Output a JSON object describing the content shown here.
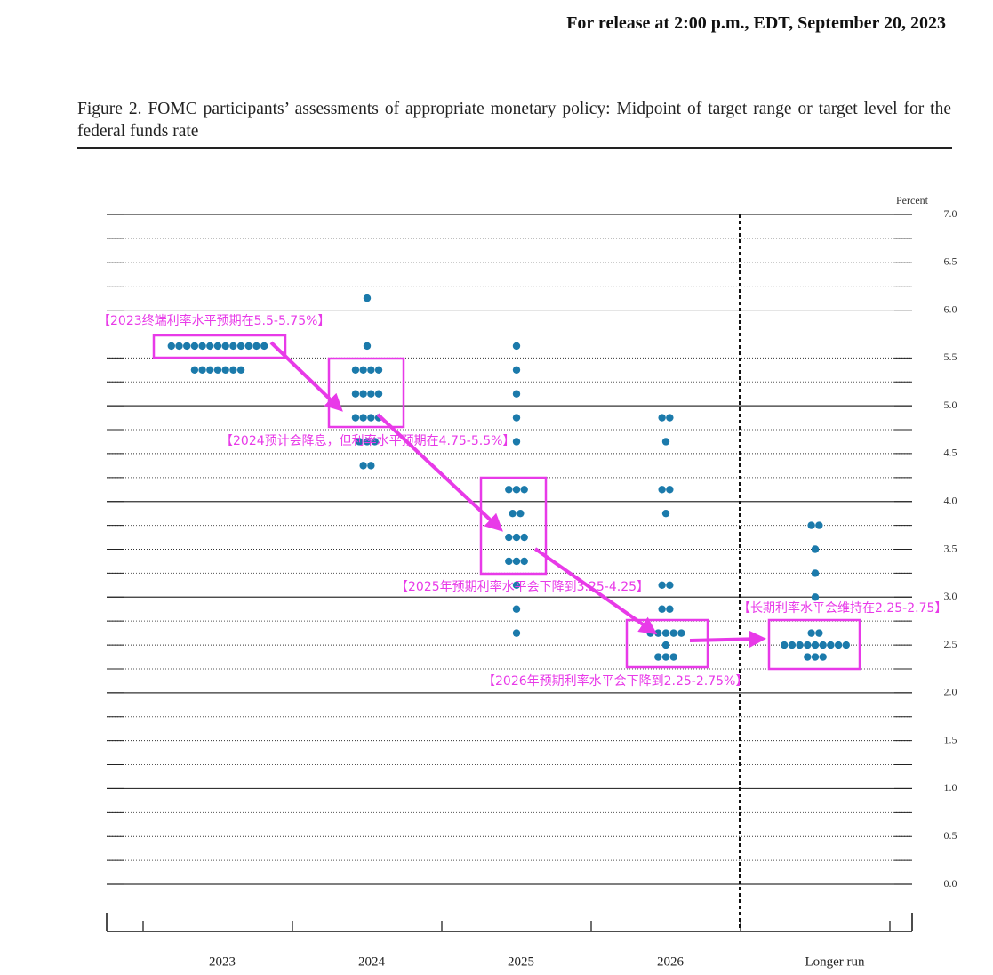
{
  "header": {
    "release": "For release at 2:00 p.m., EDT, September 20, 2023"
  },
  "chart_data": {
    "type": "dot",
    "title": "Figure 2.  FOMC participants’ assessments of appropriate monetary policy: Midpoint of target range or target level for the federal funds rate",
    "y_label": "Percent",
    "categories": [
      "2023",
      "2024",
      "2025",
      "2026",
      "Longer run"
    ],
    "color": "#1b7aab",
    "dots": [
      [
        {
          "value": 5.625,
          "count": 13
        },
        {
          "value": 5.375,
          "count": 7
        }
      ],
      [
        {
          "value": 6.125,
          "count": 1
        },
        {
          "value": 5.625,
          "count": 1
        },
        {
          "value": 5.375,
          "count": 4
        },
        {
          "value": 5.125,
          "count": 4
        },
        {
          "value": 4.875,
          "count": 4
        },
        {
          "value": 4.625,
          "count": 3
        },
        {
          "value": 4.375,
          "count": 2
        }
      ],
      [
        {
          "value": 5.625,
          "count": 1
        },
        {
          "value": 5.375,
          "count": 1
        },
        {
          "value": 5.125,
          "count": 1
        },
        {
          "value": 4.875,
          "count": 1
        },
        {
          "value": 4.625,
          "count": 1
        },
        {
          "value": 4.125,
          "count": 3
        },
        {
          "value": 3.875,
          "count": 2
        },
        {
          "value": 3.625,
          "count": 3
        },
        {
          "value": 3.375,
          "count": 3
        },
        {
          "value": 3.125,
          "count": 1
        },
        {
          "value": 2.875,
          "count": 1
        },
        {
          "value": 2.625,
          "count": 1
        }
      ],
      [
        {
          "value": 4.875,
          "count": 2
        },
        {
          "value": 4.625,
          "count": 1
        },
        {
          "value": 4.125,
          "count": 2
        },
        {
          "value": 3.875,
          "count": 1
        },
        {
          "value": 3.125,
          "count": 2
        },
        {
          "value": 2.875,
          "count": 2
        },
        {
          "value": 2.625,
          "count": 5
        },
        {
          "value": 2.5,
          "count": 1
        },
        {
          "value": 2.375,
          "count": 3
        }
      ],
      [
        {
          "value": 3.75,
          "count": 2
        },
        {
          "value": 3.5,
          "count": 1
        },
        {
          "value": 3.25,
          "count": 1
        },
        {
          "value": 3.0,
          "count": 1
        },
        {
          "value": 2.625,
          "count": 2
        },
        {
          "value": 2.5,
          "count": 9
        },
        {
          "value": 2.375,
          "count": 3
        }
      ]
    ],
    "ylim": [
      0,
      7
    ],
    "yticks": [
      {
        "value": 0,
        "label": "0.0"
      },
      0.5,
      {
        "value": 1,
        "label": "1.0"
      },
      1.5,
      {
        "value": 2,
        "label": "2.0"
      },
      2.5,
      {
        "value": 3,
        "label": "3.0"
      },
      3.5,
      {
        "value": 4,
        "label": "4.0"
      },
      4.5,
      {
        "value": 5,
        "label": "5.0"
      },
      5.5,
      {
        "value": 6,
        "label": "6.0"
      },
      6.5,
      {
        "value": 7,
        "label": "7.0"
      }
    ],
    "yminorticks": [
      0.25,
      0.75,
      1.25,
      1.75,
      2.25,
      2.75,
      3.25,
      3.75,
      4.25,
      4.75,
      5.25,
      5.75,
      6.25,
      6.75
    ],
    "annotations": [
      "【2023终端利率水平预期在5.5-5.75%】",
      "【2024预计会降息，但利率水平预期在4.75-5.5%】",
      "【2025年预期利率水平会下降到3.25-4.25】",
      "【2026年预期利率水平会下降到2.25-2.75%】",
      "【长期利率水平会维持在2.25-2.75】"
    ]
  }
}
